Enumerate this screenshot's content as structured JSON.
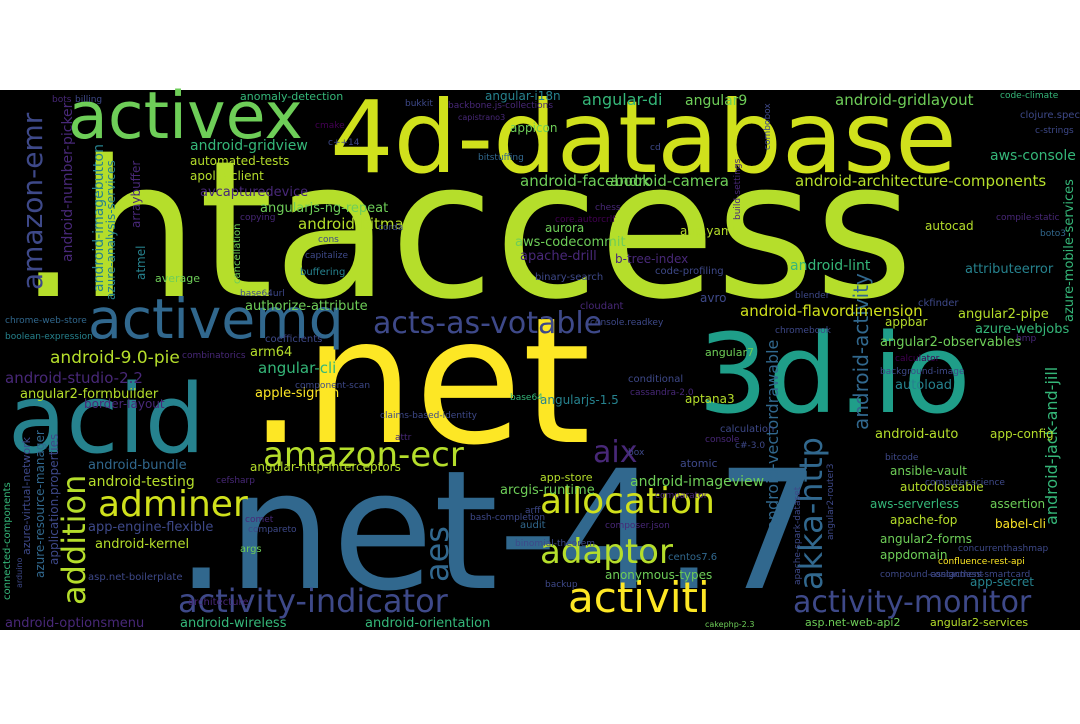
{
  "words": [
    ".htaccess",
    ".net",
    ".net-4.7",
    "4d-database",
    "acid",
    "3d.io",
    "activex",
    "activemq",
    "amazon-ecr",
    "adminer",
    "allocation",
    "adaptor",
    "activiti",
    "activity-indicator",
    "activity-monitor",
    "acts-as-votable",
    "aix",
    "aes",
    "akka-http",
    "addition",
    "amazon-emr",
    "android-activity",
    "android-vectordrawable",
    "android-jack-and-jill",
    "azure-mobile-services",
    "android-number-picker",
    "android-imagebutton",
    "angular-di",
    "angular9",
    "angular-i18n",
    "android-gridlayout",
    "android-facebook",
    "android-camera",
    "android-architecture-components",
    "android-gridview",
    "automated-tests",
    "apollo-client",
    "avcapturedevice",
    "angularjs-ng-repeat",
    "android-bitmap",
    "aws-console",
    "aurora",
    "aws-codecommit",
    "apache-drill",
    "app.yaml",
    "autocad",
    "android-lint",
    "attributeerror",
    "b-tree-index",
    "android-flavordimension",
    "avro",
    "authorize-attribute",
    "android-9.0-pie",
    "android-studio-2.2",
    "angular2-formbuilder",
    "angular-cli",
    "arm64",
    "apple-sign-in",
    "appbar",
    "angular2-pipe",
    "azure-webjobs",
    "angular2-observables",
    "autoload",
    "angular7",
    "aptana3",
    "angularjs-1.5",
    "android-auto",
    "app-config",
    "android-bundle",
    "android-testing",
    "angular-http-interceptors",
    "arcgis-runtime",
    "app-store",
    "android-imageview",
    "atomic",
    "ansible-vault",
    "autocloseable",
    "aws-serverless",
    "assertion",
    "apache-fop",
    "babel-cli",
    "angular2-forms",
    "appdomain",
    "app-secret",
    "app-engine-flexible",
    "android-kernel",
    "anonymous-types",
    "android-wireless",
    "android-orientation",
    "android-optionsmenu",
    "asp.net-web-api2",
    "angular2-services",
    "appicon",
    "anomaly-detection",
    "average",
    "bots",
    "billing",
    "bukkit",
    "backbone.js-collections",
    "capistrano3",
    "code-climate",
    "clojure.spec",
    "c-strings",
    "cd",
    "bitstuffing",
    "c++14",
    "cmake",
    "copying",
    "core.autorcrlf",
    "chess",
    "compile-static",
    "boto3",
    "cons",
    "corda",
    "capitalize",
    "buffering",
    "binary-search",
    "code-profiling",
    "base64url",
    "blender",
    "ckfinder",
    "cloudant",
    "console.readkey",
    "chromebook",
    "bmp",
    "calculator",
    "background-image",
    "chrome-web-store",
    "boolean-expression",
    "combinatorics",
    "coefficients",
    "conditional",
    "cassandra-2.0",
    "base64",
    "calculation",
    "c#-3.0",
    "console",
    "box",
    "bitcode",
    "comparator",
    "composer.json",
    "cefsharp",
    "attr",
    "args",
    "audit",
    "arff",
    "centos7.6",
    "compareto",
    "backup",
    "comet",
    "bash-completion",
    "binomial-theorem",
    "compound-assignment",
    "confluence-rest-api",
    "contactless-smartcard",
    "cakephp-2.3",
    "concurrenthashmap",
    "architecture",
    "asp.net-boilerplate",
    "connected-components",
    "arduino",
    "azure-resource-manager",
    "azure-virtual-network",
    "application.properties",
    "azure-analysis-services",
    "atmel",
    "border-layout",
    "component-scan",
    "claims-based-identity",
    "computer-science",
    "angular2-router3",
    "apache-spark-dataset",
    "arraybuffer",
    "cancellation",
    "combobox",
    "build-settings"
  ]
}
